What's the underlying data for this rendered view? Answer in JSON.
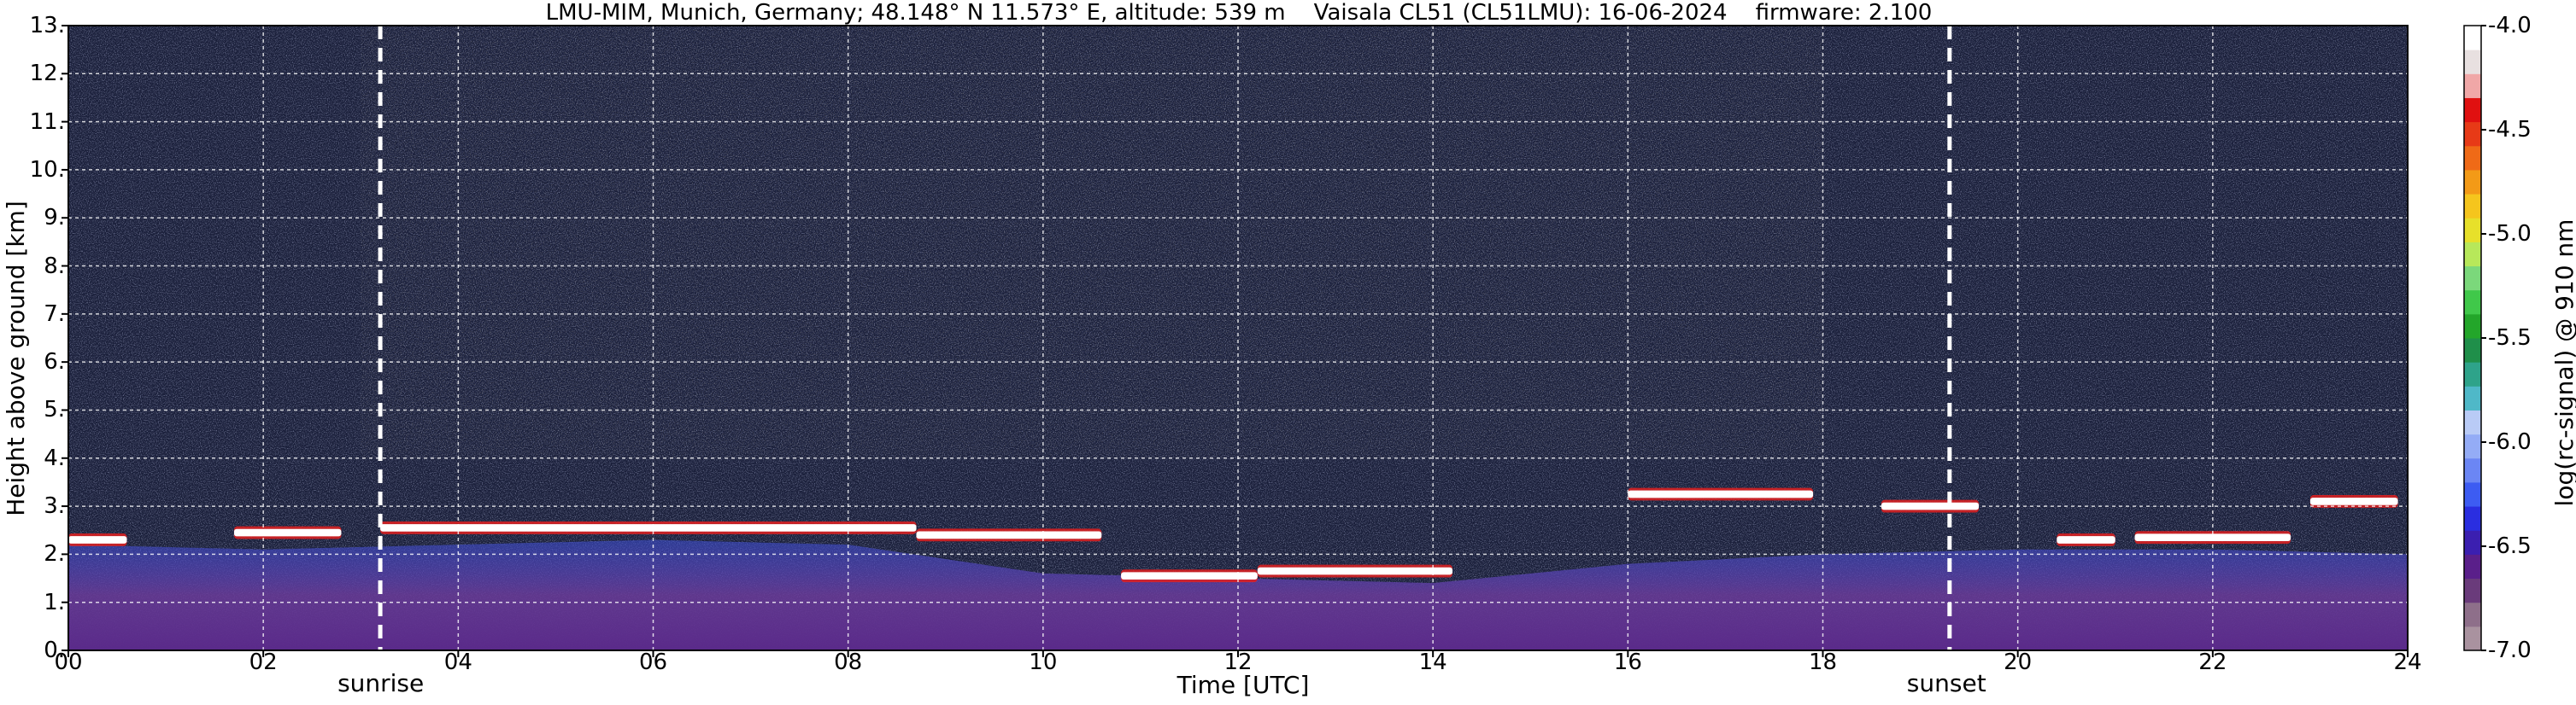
{
  "chart_data": {
    "type": "heatmap",
    "title": "LMU-MIM, Munich, Germany; 48.148° N 11.573° E, altitude: 539 m    Vaisala CL51 (CL51LMU): 16-06-2024    firmware: 2.100",
    "xlabel": "Time [UTC]",
    "ylabel": "Height above ground [km]",
    "colorbar_label": "log(rc-signal) @ 910 nm",
    "x_unit": "hours UTC",
    "xlim": [
      0,
      24
    ],
    "ylim": [
      0,
      13
    ],
    "x_ticks": [
      "00",
      "02",
      "04",
      "06",
      "08",
      "10",
      "12",
      "14",
      "16",
      "18",
      "20",
      "22",
      "24"
    ],
    "y_ticks": [
      "0.",
      "1.",
      "2.",
      "3.",
      "4.",
      "5.",
      "6.",
      "7.",
      "8.",
      "9.",
      "10.",
      "11.",
      "12.",
      "13."
    ],
    "colorbar_ticks": [
      "-4.0",
      "-4.5",
      "-5.0",
      "-5.5",
      "-6.0",
      "-6.5",
      "-7.0"
    ],
    "colorbar_range": [
      -7.0,
      -4.0
    ],
    "grid": true,
    "colormap": [
      "#a9929f",
      "#8e6f8a",
      "#6a3b7b",
      "#5a1f8a",
      "#3b1fb0",
      "#2a2ee0",
      "#3d5cf2",
      "#6b86f4",
      "#94acf6",
      "#b9cbf6",
      "#4fb8c8",
      "#2ea38a",
      "#1f8f4a",
      "#23a62a",
      "#40c84a",
      "#7bd87b",
      "#b7e85a",
      "#e7e02a",
      "#f5c51d",
      "#f39a17",
      "#ef6a17",
      "#e73a17",
      "#e01010",
      "#f0a7a7",
      "#e8e0e0",
      "#ffffff"
    ],
    "annotations": [
      {
        "text": "sunrise",
        "x": 3.2
      },
      {
        "text": "sunset",
        "x": 19.3
      }
    ],
    "cloud_layers": [
      {
        "x": [
          0,
          0.6
        ],
        "height_km": 2.3
      },
      {
        "x": [
          1.7,
          2.8
        ],
        "height_km": 2.45
      },
      {
        "x": [
          3.2,
          8.7
        ],
        "height_km": 2.55
      },
      {
        "x": [
          8.7,
          10.6
        ],
        "height_km": 2.4
      },
      {
        "x": [
          10.8,
          12.2
        ],
        "height_km": 1.55
      },
      {
        "x": [
          12.2,
          14.2
        ],
        "height_km": 1.65
      },
      {
        "x": [
          16.0,
          17.9
        ],
        "height_km": 3.25
      },
      {
        "x": [
          18.6,
          19.6
        ],
        "height_km": 3.0
      },
      {
        "x": [
          20.4,
          21.0
        ],
        "height_km": 2.3
      },
      {
        "x": [
          21.2,
          22.8
        ],
        "height_km": 2.35
      },
      {
        "x": [
          23.0,
          23.9
        ],
        "height_km": 3.1
      }
    ],
    "aerosol_layer_top_km": [
      {
        "x": 0,
        "value": 2.2
      },
      {
        "x": 2,
        "value": 2.1
      },
      {
        "x": 4,
        "value": 2.2
      },
      {
        "x": 6,
        "value": 2.3
      },
      {
        "x": 8,
        "value": 2.2
      },
      {
        "x": 10,
        "value": 1.6
      },
      {
        "x": 12,
        "value": 1.5
      },
      {
        "x": 14,
        "value": 1.4
      },
      {
        "x": 16,
        "value": 1.8
      },
      {
        "x": 18,
        "value": 2.0
      },
      {
        "x": 20,
        "value": 2.1
      },
      {
        "x": 22,
        "value": 2.1
      },
      {
        "x": 24,
        "value": 2.0
      }
    ]
  }
}
